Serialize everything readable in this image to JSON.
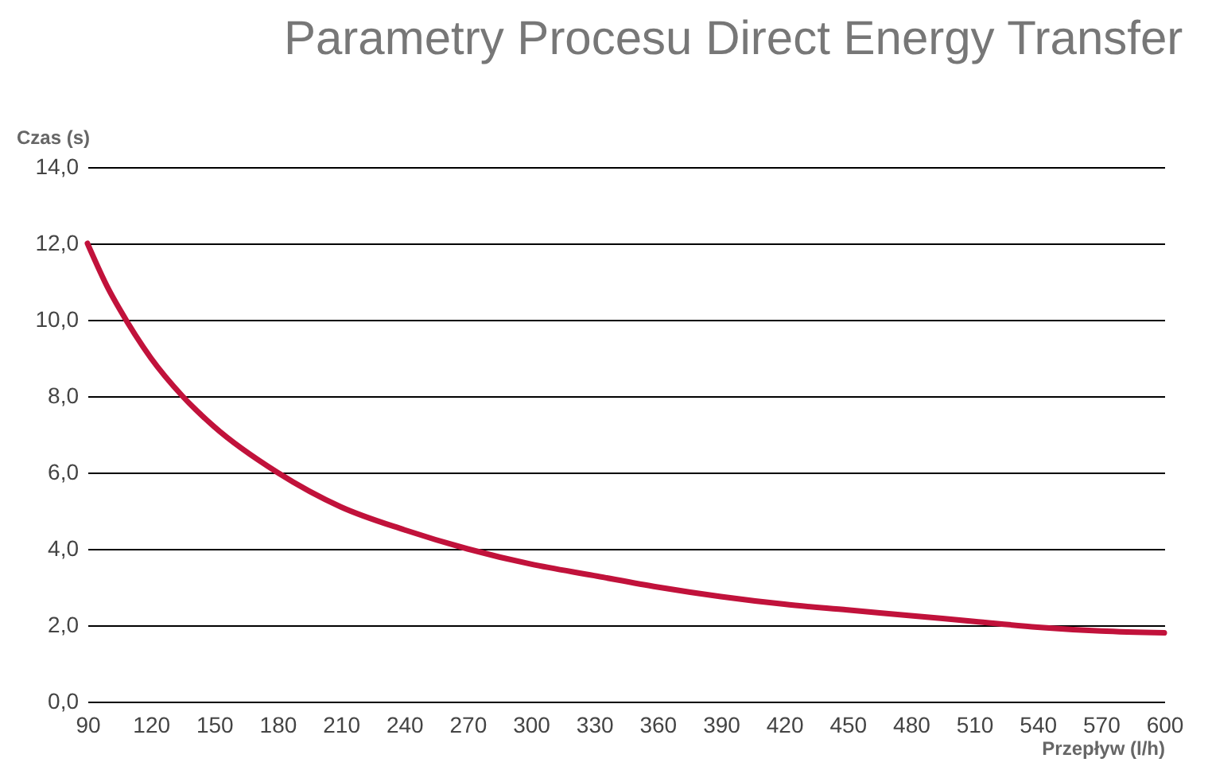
{
  "chart_data": {
    "type": "line",
    "title": "Parametry Procesu Direct Energy Transfer",
    "xlabel": "Przepływ (l/h)",
    "ylabel": "Czas (s)",
    "x": [
      90,
      100,
      105,
      120,
      135,
      150,
      180,
      210,
      240,
      270,
      300,
      330,
      360,
      390,
      420,
      450,
      480,
      510,
      540,
      570,
      600
    ],
    "series": [
      {
        "color": "#c1123b",
        "values": [
          12.0,
          10.8,
          10.3,
          9.0,
          8.0,
          7.2,
          6.0,
          5.1,
          4.5,
          4.0,
          3.6,
          3.3,
          3.0,
          2.75,
          2.55,
          2.4,
          2.25,
          2.1,
          1.95,
          1.85,
          1.8
        ]
      }
    ],
    "xlim": [
      90,
      600
    ],
    "xticks": [
      90,
      120,
      150,
      180,
      210,
      240,
      270,
      300,
      330,
      360,
      390,
      420,
      450,
      480,
      510,
      540,
      570,
      600
    ],
    "ylim": [
      0,
      14
    ],
    "yticks": [
      {
        "value": 0,
        "label": "0,0"
      },
      {
        "value": 2,
        "label": "2,0"
      },
      {
        "value": 4,
        "label": "4,0"
      },
      {
        "value": 6,
        "label": "6,0"
      },
      {
        "value": 8,
        "label": "8,0"
      },
      {
        "value": 10,
        "label": "10,0"
      },
      {
        "value": 12,
        "label": "12,0"
      },
      {
        "value": 14,
        "label": "14,0"
      }
    ],
    "grid": "y",
    "marker": "none",
    "line_style": "solid"
  }
}
